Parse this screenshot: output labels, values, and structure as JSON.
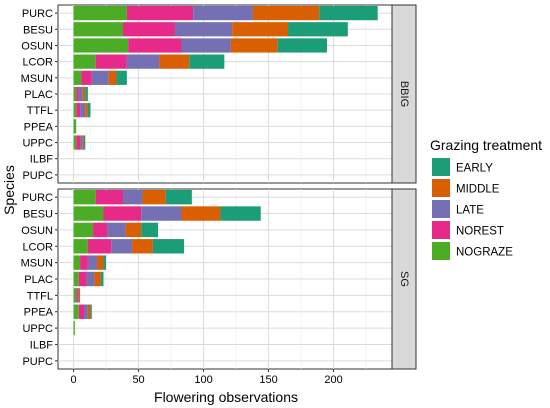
{
  "chart_data": {
    "type": "bar",
    "orientation": "horizontal",
    "stacked": true,
    "xlabel": "Flowering observations",
    "ylabel": "Species",
    "xlim": [
      -12,
      245
    ],
    "x_ticks": [
      0,
      50,
      100,
      150,
      200
    ],
    "grid": true,
    "legend": {
      "title": "Grazing treatment",
      "position": "right",
      "entries": [
        "EARLY",
        "MIDDLE",
        "LATE",
        "NOREST",
        "NOGRAZE"
      ]
    },
    "colors": {
      "EARLY": "#1B9E77",
      "MIDDLE": "#D95F02",
      "LATE": "#7570B3",
      "NOREST": "#E7298A",
      "NOGRAZE": "#4DAC26"
    },
    "stack_order": [
      "NOGRAZE",
      "NOREST",
      "LATE",
      "MIDDLE",
      "EARLY"
    ],
    "categories": [
      "PURC",
      "BESU",
      "OSUN",
      "LCOR",
      "MSUN",
      "PLAC",
      "TTFL",
      "PPEA",
      "UPPC",
      "ILBF",
      "PUPC"
    ],
    "panels": [
      {
        "strip_label": "BBIG",
        "series": [
          {
            "name": "NOGRAZE",
            "values": [
              41,
              38,
              42,
              17,
              6,
              2,
              2,
              2,
              2,
              0,
              0
            ]
          },
          {
            "name": "NOREST",
            "values": [
              51,
              40,
              41,
              24,
              8,
              2,
              3,
              0,
              3,
              0,
              0
            ]
          },
          {
            "name": "LATE",
            "values": [
              46,
              44,
              38,
              25,
              13,
              3,
              4,
              0,
              2,
              0,
              0
            ]
          },
          {
            "name": "MIDDLE",
            "values": [
              51,
              43,
              36,
              23,
              6,
              2,
              2,
              0,
              1,
              0,
              0
            ]
          },
          {
            "name": "EARLY",
            "values": [
              45,
              46,
              38,
              27,
              8,
              2,
              2,
              0,
              1,
              0,
              0
            ]
          }
        ]
      },
      {
        "strip_label": "SG",
        "series": [
          {
            "name": "NOGRAZE",
            "values": [
              17,
              23,
              15,
              11,
              5,
              4,
              2,
              4,
              1,
              0,
              0
            ]
          },
          {
            "name": "NOREST",
            "values": [
              21,
              29,
              11,
              18,
              6,
              6,
              1,
              4,
              0,
              0,
              0
            ]
          },
          {
            "name": "LATE",
            "values": [
              15,
              31,
              14,
              16,
              7,
              6,
              1,
              3,
              0,
              0,
              0
            ]
          },
          {
            "name": "MIDDLE",
            "values": [
              18,
              30,
              12,
              16,
              5,
              5,
              1,
              2,
              0,
              0,
              0
            ]
          },
          {
            "name": "EARLY",
            "values": [
              20,
              31,
              13,
              24,
              2,
              2,
              0,
              1,
              0,
              0,
              0
            ]
          }
        ]
      }
    ]
  }
}
